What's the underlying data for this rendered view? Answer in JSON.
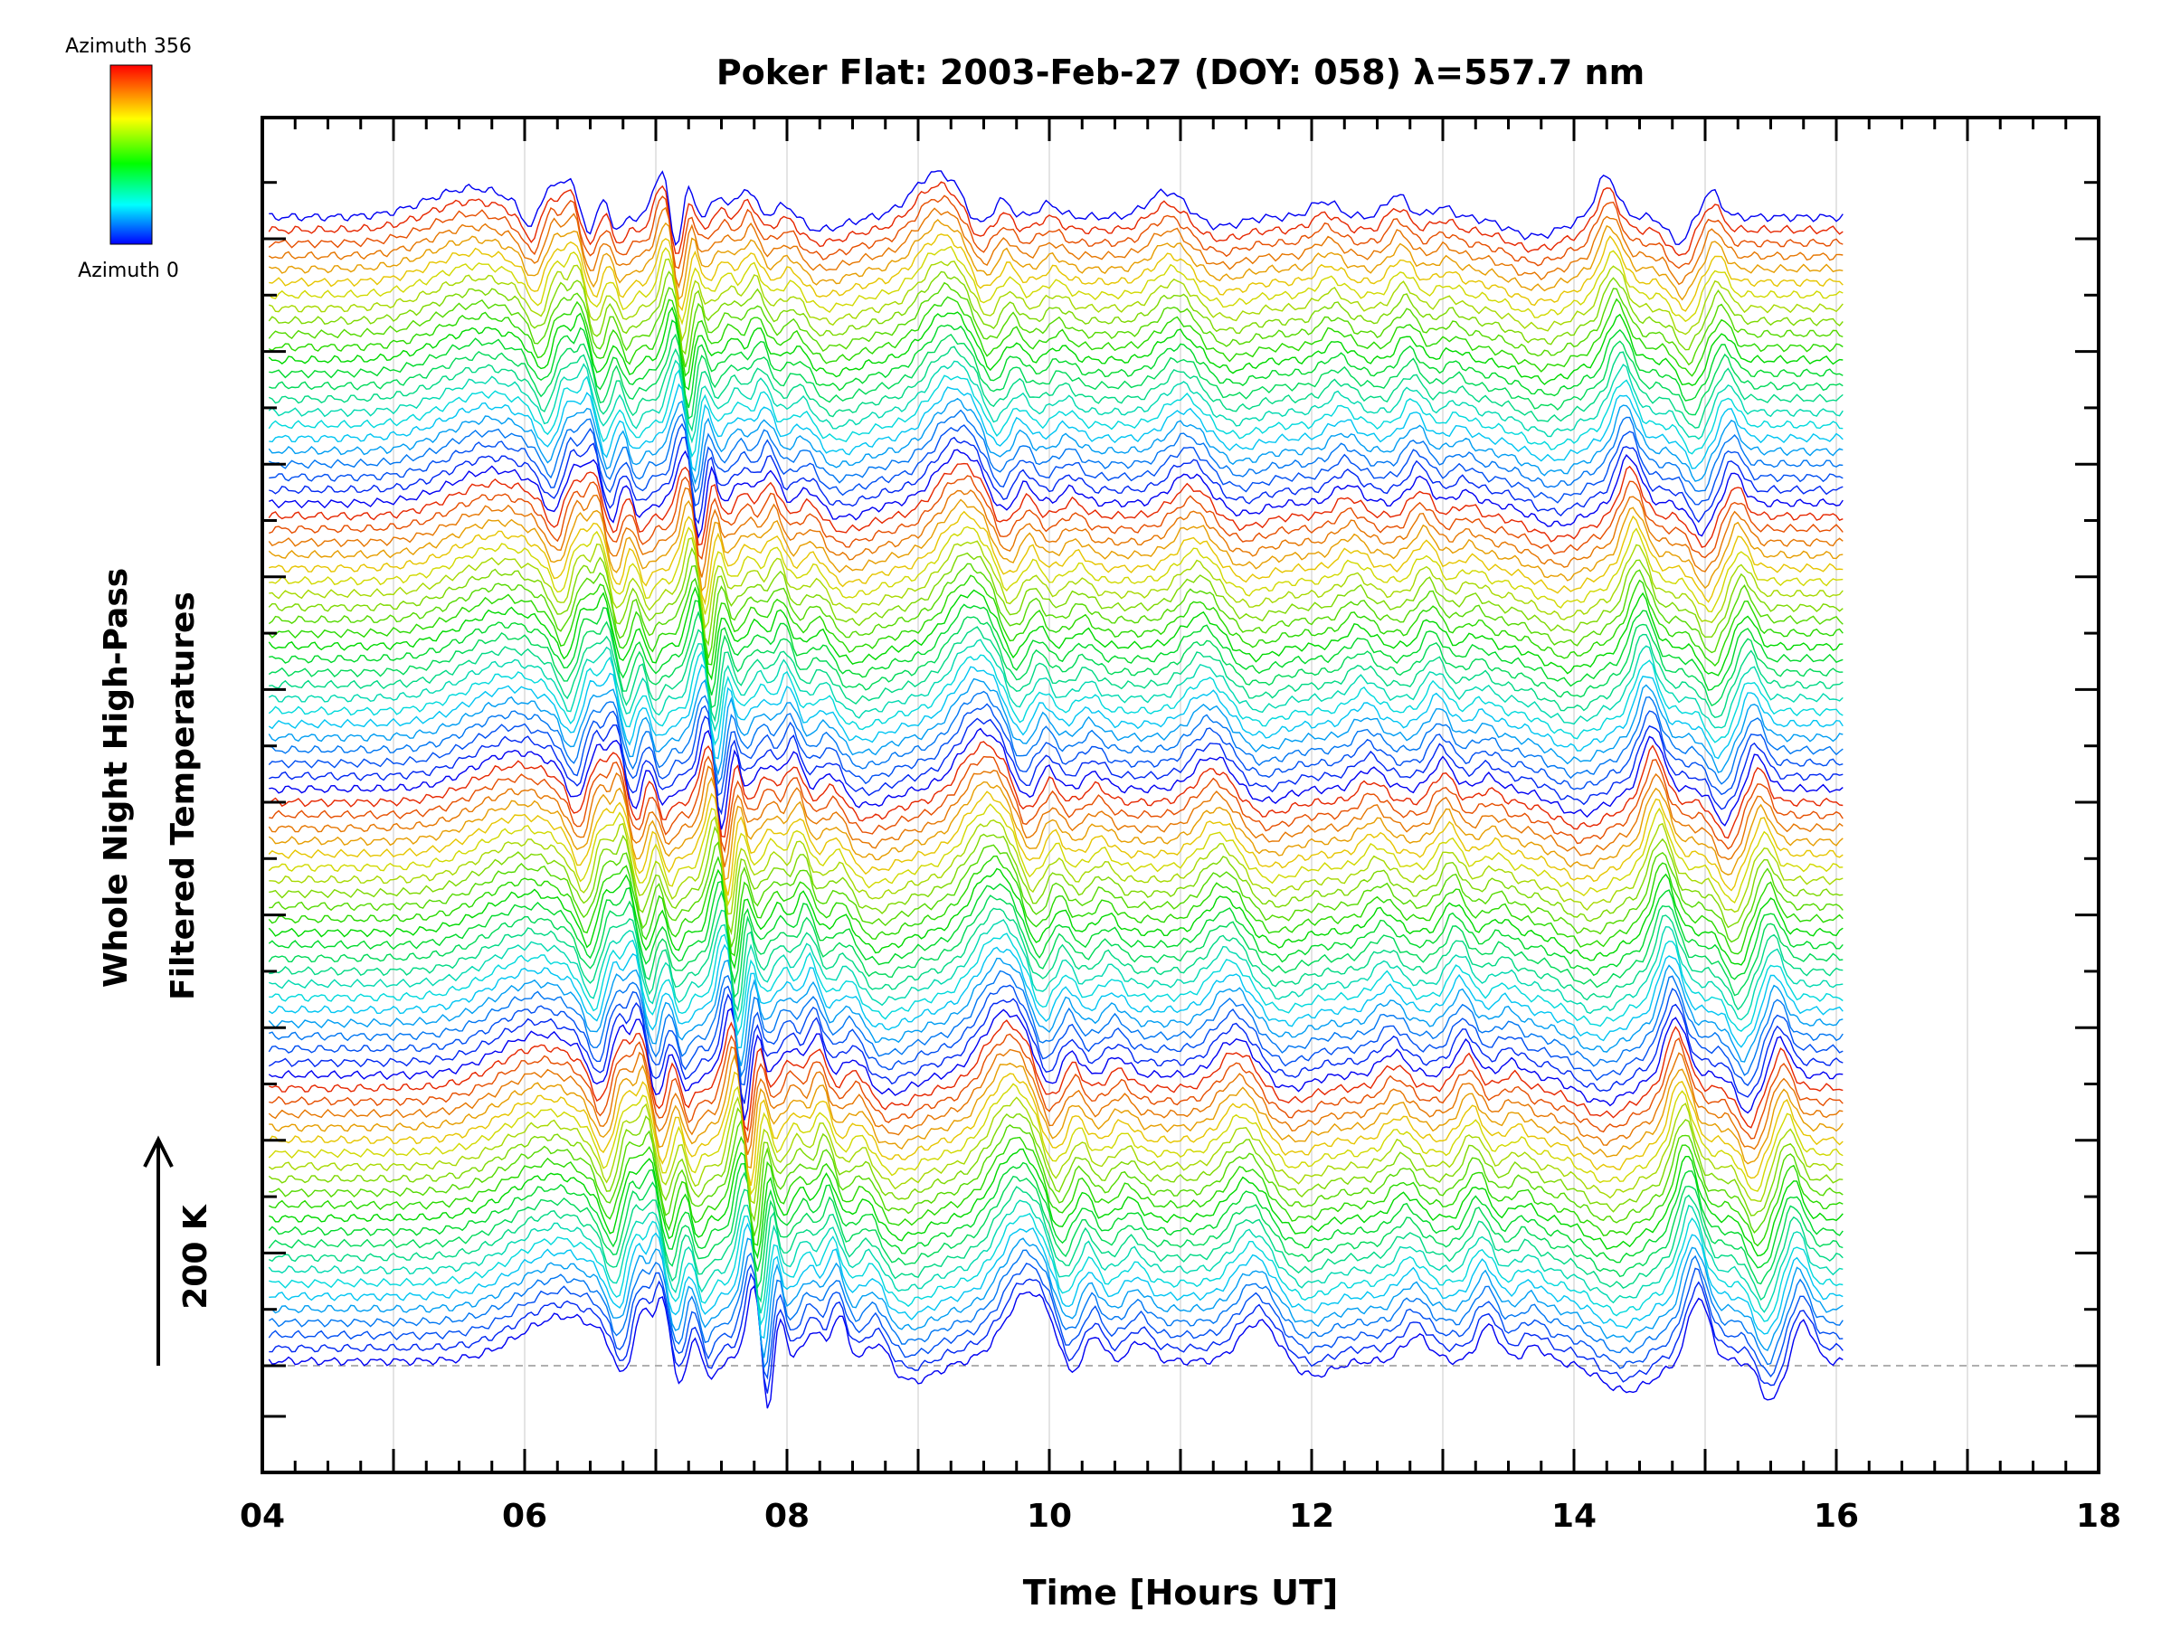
{
  "chart_data": {
    "type": "line",
    "title": "Poker Flat: 2003-Feb-27 (DOY: 058) λ=557.7 nm",
    "xlabel": "Time [Hours UT]",
    "ylabel_line1": "Whole Night High-Pass",
    "ylabel_line2": "Filtered Temperatures",
    "xlim": [
      4,
      18
    ],
    "x_tick_labels": [
      "04",
      "06",
      "08",
      "10",
      "12",
      "14",
      "16",
      "18"
    ],
    "x_range_data": [
      4.05,
      16.05
    ],
    "scale_bar_label": "200 K",
    "colorbar": {
      "top_label": "Azimuth 356",
      "bottom_label": "Azimuth 0",
      "colors": [
        "#ff0000",
        "#ffff00",
        "#00ff00",
        "#00ffff",
        "#0000ff"
      ]
    },
    "grid": true,
    "series_count": 89,
    "baseline_dashed": true,
    "peak_times_hours": [
      6.3,
      6.9,
      7.05,
      7.3,
      7.75,
      7.95,
      8.2,
      8.4,
      8.7,
      9.85,
      10.35,
      11.6,
      12.8,
      13.35,
      14.95,
      15.75
    ],
    "trough_times_hours": [
      6.75,
      7.2,
      7.4,
      7.85,
      8.95,
      10.15,
      12.0,
      14.4,
      15.5
    ]
  }
}
